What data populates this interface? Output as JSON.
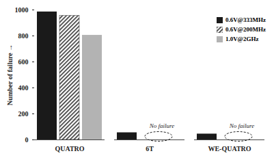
{
  "chart_data": {
    "type": "bar",
    "y_label": "Number of failure",
    "categories": [
      "QUATRO",
      "6T",
      "WE-QUATRO"
    ],
    "series": [
      {
        "name": "0.6V@333MHz",
        "color": "#1a1a1a",
        "values": [
          985,
          55,
          45
        ]
      },
      {
        "name": "0.6V@200MHz",
        "color": "#333333",
        "values": [
          955,
          0,
          0
        ]
      },
      {
        "name": "1.0V@2GHz",
        "color": "#b3b3b3",
        "values": [
          805,
          0,
          0
        ]
      }
    ],
    "ylim": [
      0,
      1000
    ],
    "yticks": [
      0,
      200,
      400,
      600,
      800,
      1000
    ],
    "grid": false,
    "legend": "top-right",
    "annotations": [
      {
        "text": "No failure",
        "category": "6T"
      },
      {
        "text": "No failure",
        "category": "WE-QUATRO"
      }
    ]
  }
}
